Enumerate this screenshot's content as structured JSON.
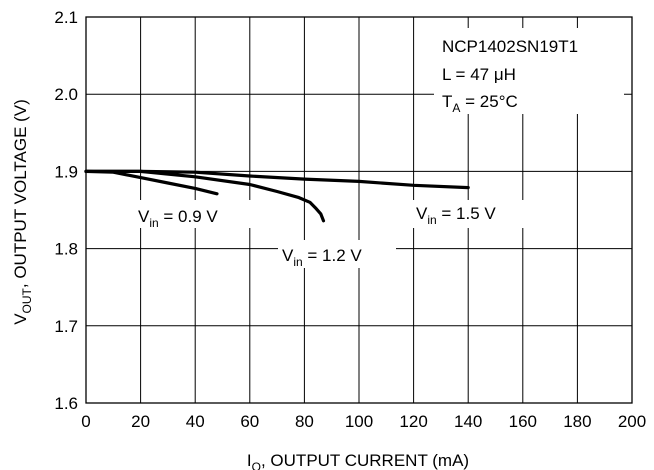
{
  "chart_data": {
    "type": "line",
    "title": "",
    "xlabel": {
      "main": "I",
      "sub": "O",
      "rest": ", OUTPUT CURRENT (mA)"
    },
    "ylabel": {
      "main": "V",
      "sub": "OUT",
      "rest": ", OUTPUT VOLTAGE (V)"
    },
    "xlim": [
      0,
      200
    ],
    "ylim": [
      1.6,
      2.1
    ],
    "x_ticks": [
      0,
      20,
      40,
      60,
      80,
      100,
      120,
      140,
      160,
      180,
      200
    ],
    "y_ticks": [
      "1.6",
      "1.7",
      "1.8",
      "1.9",
      "2.0",
      "2.1"
    ],
    "grid": true,
    "annotation": {
      "line1": "NCP1402SN19T1",
      "line2": "L = 47 μH",
      "line3_main": "T",
      "line3_sub": "A",
      "line3_rest": " = 25°C"
    },
    "series": [
      {
        "name": "Vin = 0.9 V",
        "label_main": "V",
        "label_sub": "in",
        "label_rest": " = 0.9 V",
        "x": [
          0,
          10,
          20,
          30,
          40,
          48
        ],
        "y": [
          1.9,
          1.899,
          1.892,
          1.885,
          1.878,
          1.871
        ]
      },
      {
        "name": "Vin = 1.2 V",
        "label_main": "V",
        "label_sub": "in",
        "label_rest": " = 1.2 V",
        "x": [
          0,
          20,
          40,
          60,
          70,
          78,
          82,
          84,
          86,
          87
        ],
        "y": [
          1.9,
          1.9,
          1.893,
          1.883,
          1.874,
          1.866,
          1.86,
          1.853,
          1.845,
          1.836
        ]
      },
      {
        "name": "Vin = 1.5 V",
        "label_main": "V",
        "label_sub": "in",
        "label_rest": " = 1.5 V",
        "x": [
          0,
          20,
          40,
          60,
          80,
          100,
          120,
          140
        ],
        "y": [
          1.9,
          1.9,
          1.899,
          1.894,
          1.89,
          1.887,
          1.882,
          1.879
        ]
      }
    ]
  }
}
